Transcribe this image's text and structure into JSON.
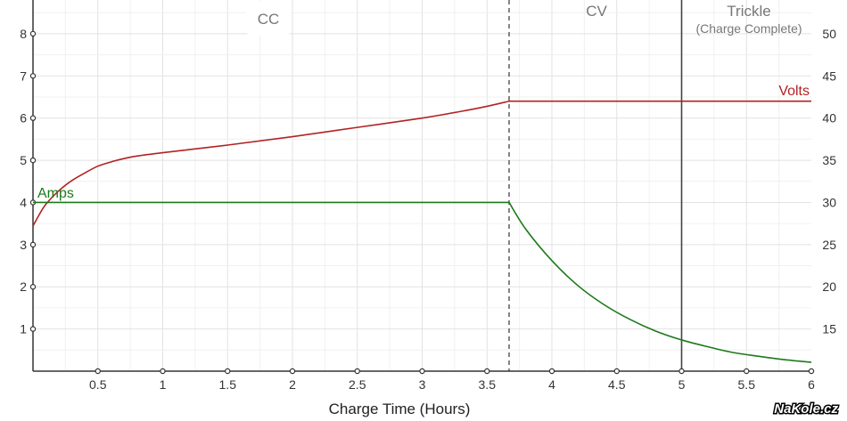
{
  "chart_data": {
    "type": "line",
    "title": "",
    "xlabel": "Charge Time (Hours)",
    "ylabel_left": "",
    "ylabel_right": "",
    "xlim": [
      0,
      6
    ],
    "ylim_left": [
      0,
      8.8
    ],
    "ylim_right": [
      10,
      54
    ],
    "grid": true,
    "x_ticks": [
      0.5,
      1,
      1.5,
      2,
      2.5,
      3,
      3.5,
      4,
      4.5,
      5,
      5.5,
      6
    ],
    "x_tick_labels": [
      "0.5",
      "1",
      "1.5",
      "2",
      "2.5",
      "3",
      "3.5",
      "4",
      "4.5",
      "5",
      "5.5",
      "6"
    ],
    "y_left_ticks": [
      1,
      2,
      3,
      4,
      5,
      6,
      7,
      8
    ],
    "y_left_tick_labels": [
      "1",
      "2",
      "3",
      "4",
      "5",
      "6",
      "7",
      "8"
    ],
    "y_right_ticks": [
      15,
      20,
      25,
      30,
      35,
      40,
      45,
      50
    ],
    "y_right_tick_labels": [
      "15",
      "20",
      "25",
      "30",
      "35",
      "40",
      "45",
      "50"
    ],
    "phases": [
      {
        "label": "CC",
        "x_start": 0,
        "x_end": 3.67
      },
      {
        "label": "CV",
        "x_start": 3.67,
        "x_end": 5.0
      },
      {
        "label": "Trickle",
        "sublabel": "(Charge Complete)",
        "x_start": 5.0,
        "x_end": 6
      }
    ],
    "dividers": [
      {
        "x": 3.67,
        "style": "dashed"
      },
      {
        "x": 5.0,
        "style": "solid"
      }
    ],
    "series": [
      {
        "name": "Volts",
        "axis": "right",
        "color": "#b22222",
        "x": [
          0,
          0.05,
          0.1,
          0.2,
          0.3,
          0.4,
          0.5,
          0.6,
          0.7,
          0.8,
          1.0,
          1.5,
          2.0,
          2.5,
          3.0,
          3.3,
          3.5,
          3.67,
          4.0,
          4.5,
          5.0,
          5.5,
          6.0
        ],
        "values": [
          27.2,
          28.6,
          29.8,
          31.4,
          32.6,
          33.5,
          34.3,
          34.8,
          35.2,
          35.5,
          35.9,
          36.8,
          37.8,
          38.9,
          40.0,
          40.8,
          41.4,
          42.0,
          42.0,
          42.0,
          42.0,
          42.0,
          42.0
        ]
      },
      {
        "name": "Amps",
        "axis": "left",
        "color": "#1a7a1a",
        "x": [
          0,
          0.5,
          1.0,
          1.5,
          2.0,
          2.5,
          3.0,
          3.5,
          3.67,
          3.8,
          4.0,
          4.2,
          4.4,
          4.6,
          4.8,
          5.0,
          5.2,
          5.4,
          5.6,
          5.8,
          6.0
        ],
        "values": [
          4,
          4,
          4,
          4,
          4,
          4,
          4,
          4,
          4,
          3.36,
          2.62,
          2.03,
          1.58,
          1.23,
          0.95,
          0.74,
          0.58,
          0.44,
          0.35,
          0.27,
          0.21
        ]
      }
    ]
  },
  "watermark": "NaKole.cz"
}
